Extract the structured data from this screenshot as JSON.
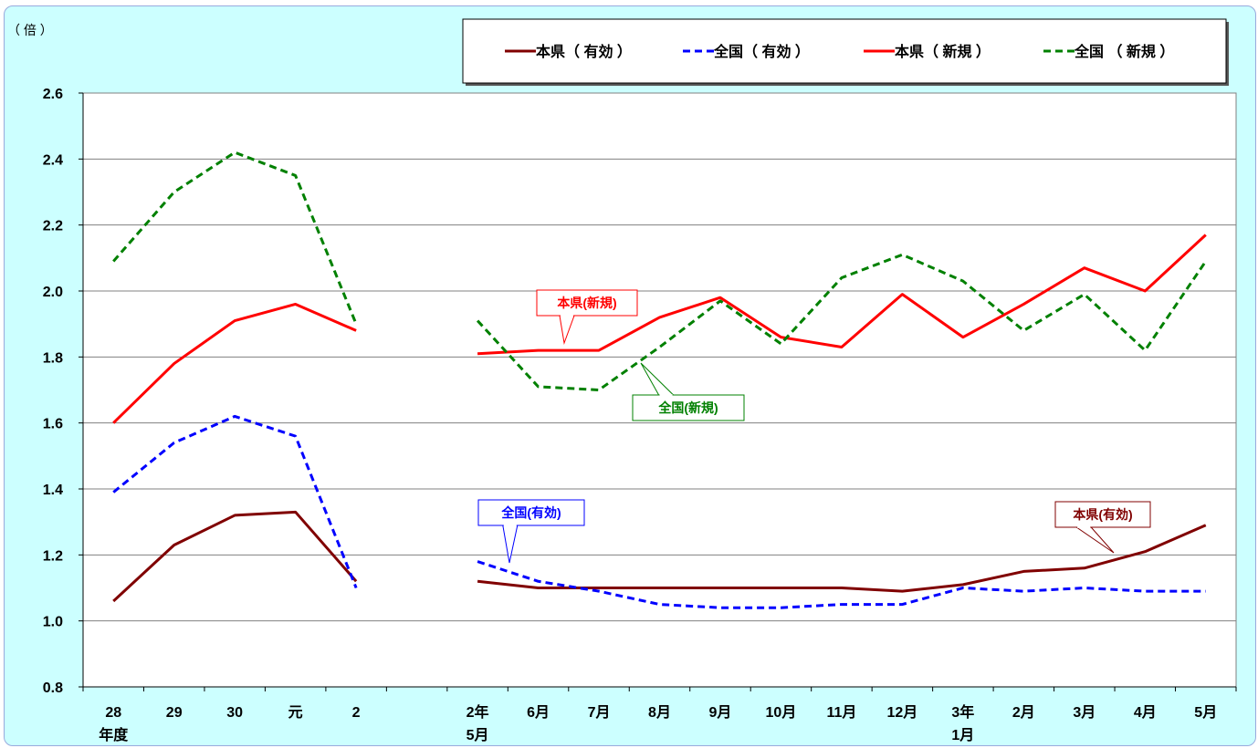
{
  "chart_data": {
    "type": "line",
    "unit_label": "（ 倍 ）",
    "ylim": [
      0.8,
      2.6
    ],
    "yticks": [
      "0.8",
      "1.0",
      "1.2",
      "1.4",
      "1.6",
      "1.8",
      "2.0",
      "2.2",
      "2.4",
      "2.6"
    ],
    "grid": true,
    "legend_position": "top-right",
    "categories": [
      [
        "28",
        "年度"
      ],
      [
        "29"
      ],
      [
        "30"
      ],
      [
        "元"
      ],
      [
        "2"
      ],
      [
        ""
      ],
      [
        "2年",
        "5月"
      ],
      [
        "6月"
      ],
      [
        "7月"
      ],
      [
        "8月"
      ],
      [
        "9月"
      ],
      [
        "10月"
      ],
      [
        "11月"
      ],
      [
        "12月"
      ],
      [
        "3年",
        "1月"
      ],
      [
        "2月"
      ],
      [
        "3月"
      ],
      [
        "4月"
      ],
      [
        "5月"
      ]
    ],
    "series": [
      {
        "name": "本県（ 有効 ）",
        "callout": "本県(有効)",
        "color": "#800000",
        "dashed": false,
        "segments": [
          [
            1.06,
            1.23,
            1.32,
            1.33,
            1.12
          ],
          [
            1.12,
            1.1,
            1.1,
            1.1,
            1.1,
            1.1,
            1.1,
            1.09,
            1.11,
            1.15,
            1.16,
            1.21,
            1.29
          ]
        ]
      },
      {
        "name": "全国（ 有効 ）",
        "callout": "全国(有効)",
        "color": "#0000ff",
        "dashed": true,
        "segments": [
          [
            1.39,
            1.54,
            1.62,
            1.56,
            1.1
          ],
          [
            1.18,
            1.12,
            1.09,
            1.05,
            1.04,
            1.04,
            1.05,
            1.05,
            1.1,
            1.09,
            1.1,
            1.09,
            1.09
          ]
        ]
      },
      {
        "name": "本県（ 新規 ）",
        "callout": "本県(新規)",
        "color": "#ff0000",
        "dashed": false,
        "segments": [
          [
            1.6,
            1.78,
            1.91,
            1.96,
            1.88
          ],
          [
            1.81,
            1.82,
            1.82,
            1.92,
            1.98,
            1.86,
            1.83,
            1.99,
            1.86,
            1.96,
            2.07,
            2.0,
            2.17
          ]
        ]
      },
      {
        "name": "全国 （ 新規 ）",
        "callout": "全国(新規)",
        "color": "#008000",
        "dashed": true,
        "segments": [
          [
            2.09,
            2.3,
            2.42,
            2.35,
            1.9
          ],
          [
            1.91,
            1.71,
            1.7,
            1.83,
            1.97,
            1.84,
            2.04,
            2.11,
            2.03,
            1.88,
            1.99,
            1.82,
            2.09
          ]
        ]
      }
    ]
  }
}
